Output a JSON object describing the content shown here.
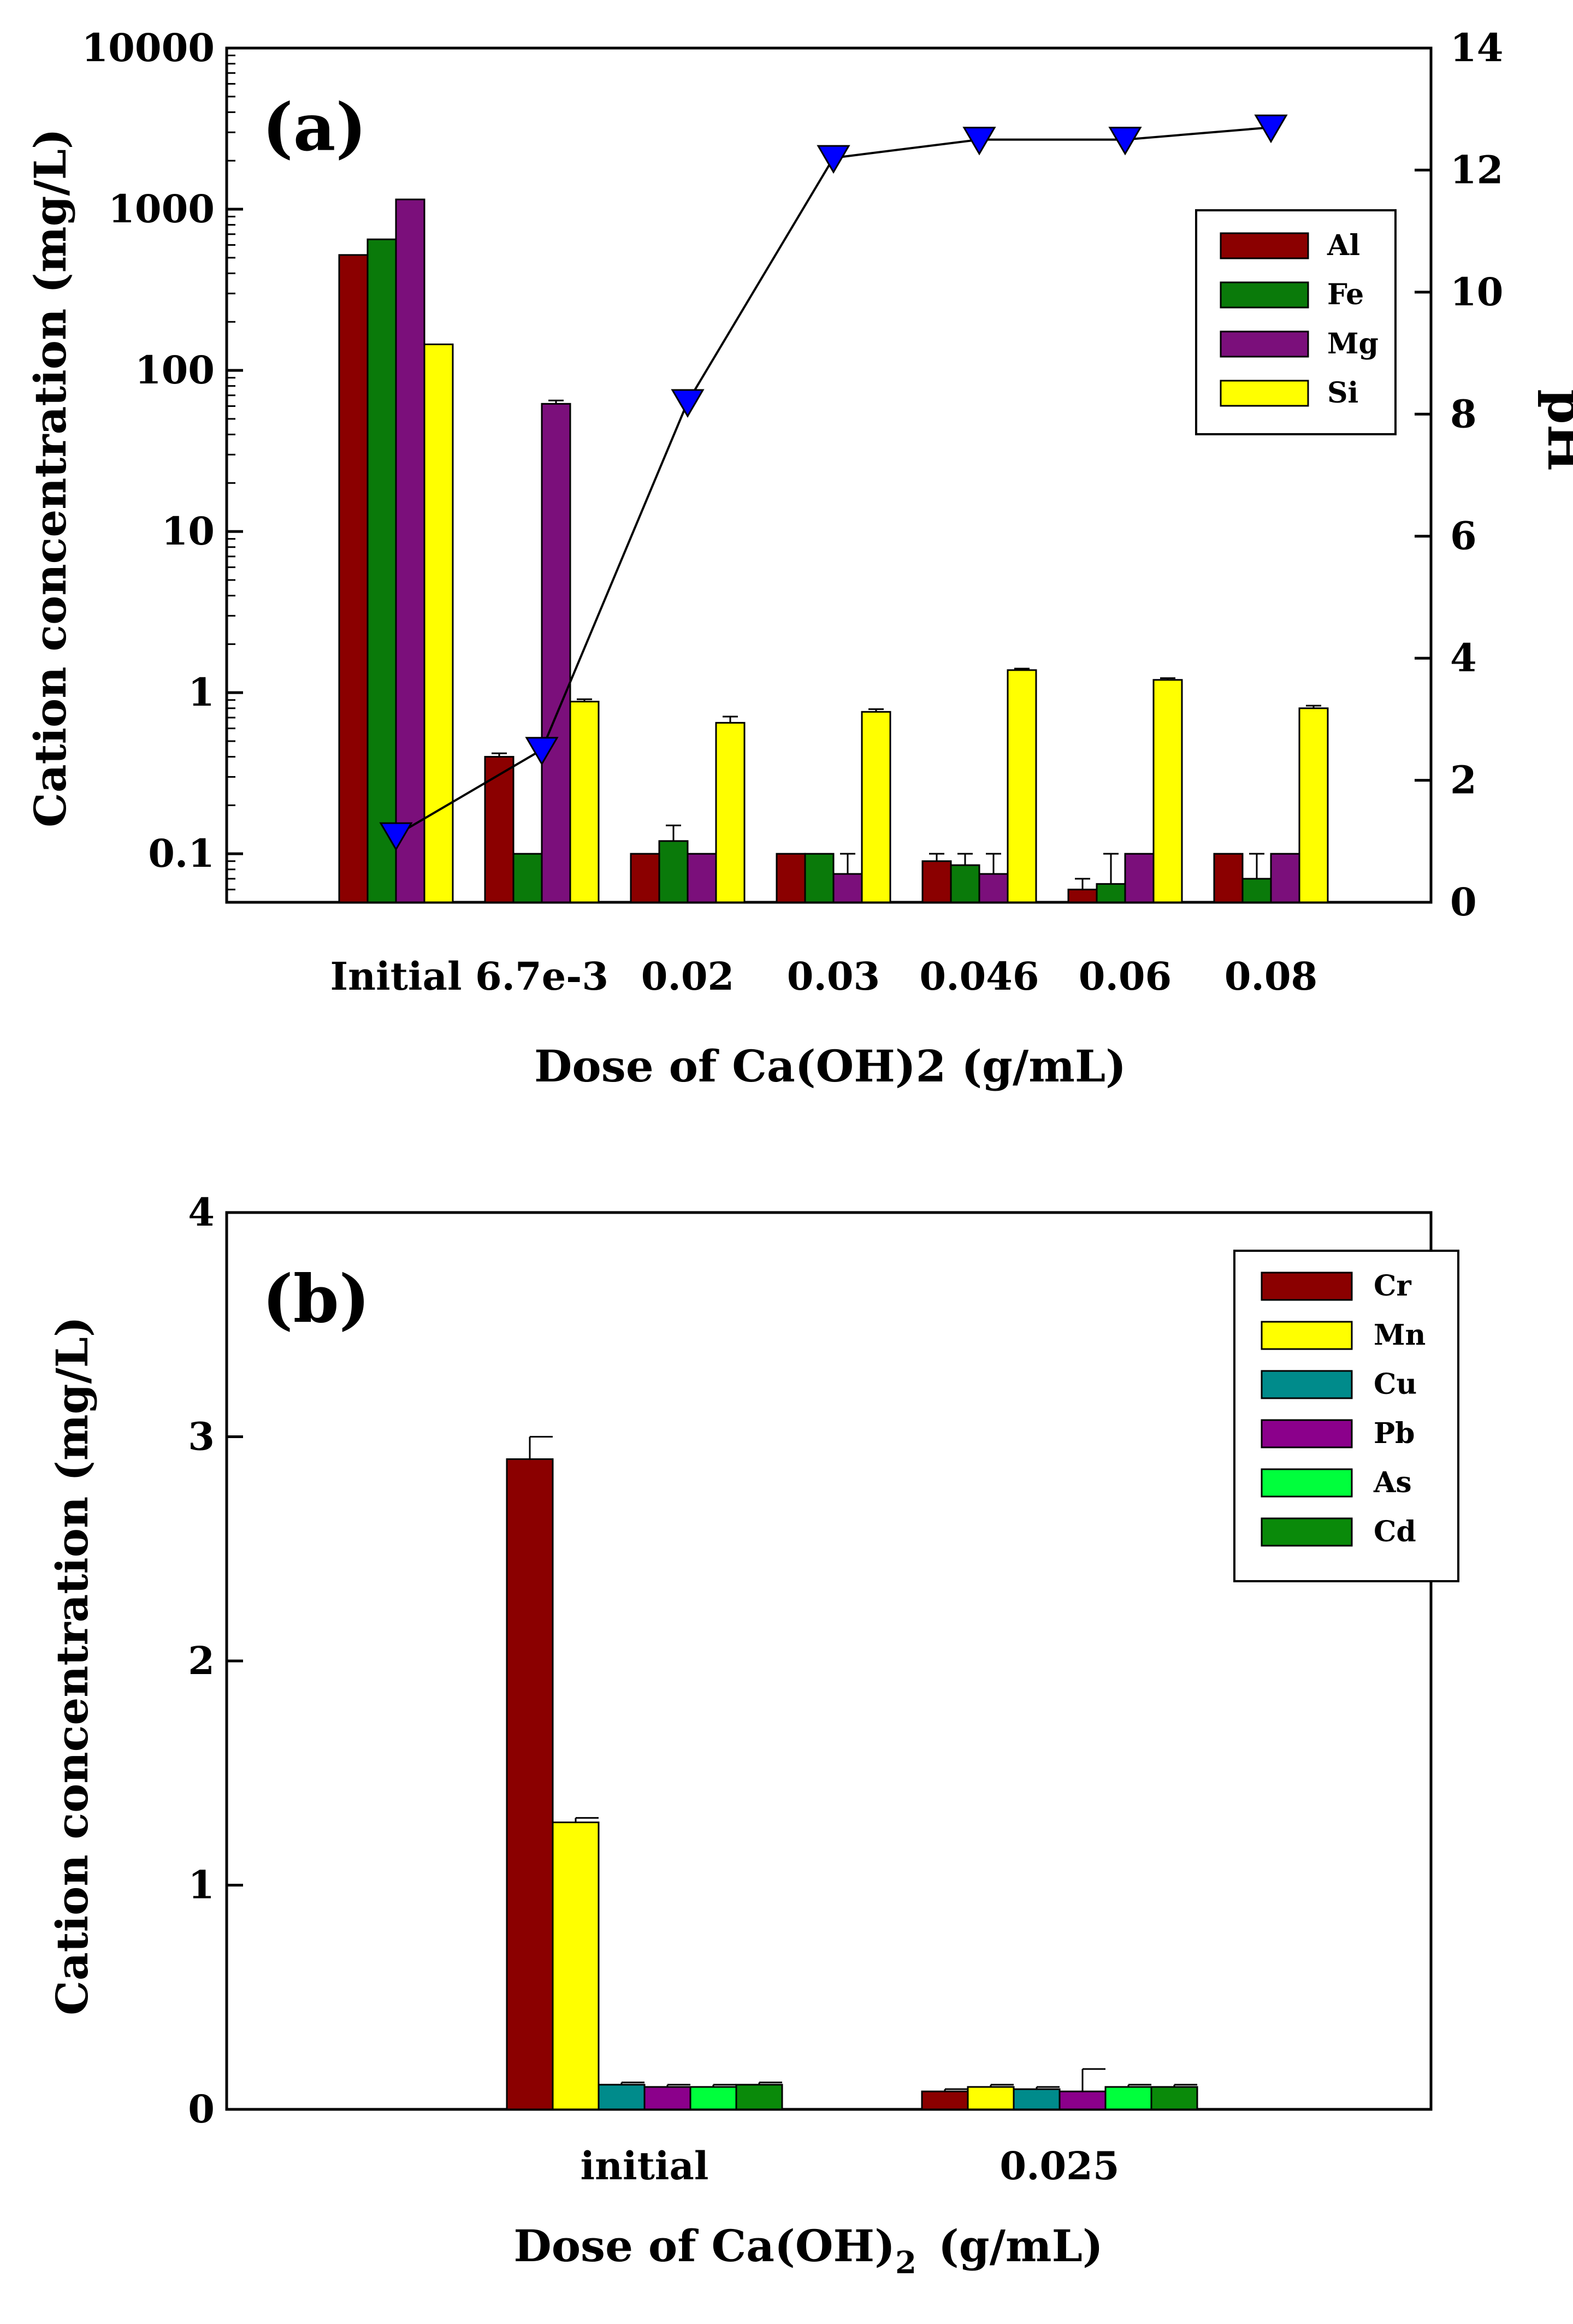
{
  "chart_data": [
    {
      "panel": "(a)",
      "type": "bar",
      "yscale": "log",
      "categories": [
        "Initial",
        "6.7e-3",
        "0.02",
        "0.03",
        "0.046",
        "0.06",
        "0.08"
      ],
      "series": [
        {
          "name": "Al",
          "color": "#8b0000",
          "values": [
            520,
            0.4,
            0.1,
            0.1,
            0.09,
            0.06,
            0.1
          ],
          "errors": [
            0,
            0.02,
            0,
            0,
            0.01,
            0.01,
            0
          ]
        },
        {
          "name": "Fe",
          "color": "#0a7a0a",
          "values": [
            650,
            0.1,
            0.12,
            0.1,
            0.085,
            0.065,
            0.07
          ],
          "errors": [
            0,
            0,
            0.03,
            0,
            0.015,
            0.035,
            0.03
          ]
        },
        {
          "name": "Mg",
          "color": "#7b0f7b",
          "values": [
            1150,
            62,
            0.1,
            0.075,
            0.075,
            0.1,
            0.1
          ],
          "errors": [
            0,
            3,
            0,
            0.025,
            0.025,
            0,
            0
          ]
        },
        {
          "name": "Si",
          "color": "#ffff00",
          "values": [
            145,
            0.88,
            0.65,
            0.76,
            1.38,
            1.2,
            0.8
          ],
          "errors": [
            0,
            0.03,
            0.06,
            0.03,
            0.03,
            0.03,
            0.03
          ]
        }
      ],
      "ph_series": {
        "name": "pH",
        "color": "#0000ff",
        "values": [
          1.1,
          2.5,
          8.2,
          12.2,
          12.5,
          12.5,
          12.7
        ]
      },
      "title": "(a)",
      "xlabel": "Dose of Ca(OH)2  (g/mL)",
      "ylabel": "Cation concentration  (mg/L)",
      "y2label": "pH",
      "ylim": [
        0.05,
        10000
      ],
      "y2lim": [
        0,
        14
      ],
      "y_ticks": [
        "0.1",
        "1",
        "10",
        "100",
        "1000",
        "10000"
      ],
      "y2_ticks": [
        "0",
        "2",
        "4",
        "6",
        "8",
        "10",
        "12",
        "14"
      ],
      "legend_position": "top-right"
    },
    {
      "panel": "(b)",
      "type": "bar",
      "categories": [
        "initial",
        "0.025"
      ],
      "series": [
        {
          "name": "Cr",
          "color": "#8b0000",
          "values": [
            2.9,
            0.08
          ],
          "errors": [
            0.1,
            0.01
          ]
        },
        {
          "name": "Mn",
          "color": "#ffff00",
          "values": [
            1.28,
            0.1
          ],
          "errors": [
            0.02,
            0.01
          ]
        },
        {
          "name": "Cu",
          "color": "#008b8b",
          "values": [
            0.11,
            0.09
          ],
          "errors": [
            0.01,
            0.01
          ]
        },
        {
          "name": "Pb",
          "color": "#8b008b",
          "values": [
            0.1,
            0.08
          ],
          "errors": [
            0.01,
            0.1
          ]
        },
        {
          "name": "As",
          "color": "#00ff3c",
          "values": [
            0.1,
            0.1
          ],
          "errors": [
            0.01,
            0.01
          ]
        },
        {
          "name": "Cd",
          "color": "#0a8a0a",
          "values": [
            0.11,
            0.1
          ],
          "errors": [
            0.01,
            0.01
          ]
        }
      ],
      "title": "(b)",
      "xlabel_main": "Dose of Ca(OH)",
      "xlabel_subscript": "2",
      "xlabel_units": "(g/mL)",
      "ylabel": "Cation concentration  (mg/L)",
      "ylim": [
        0,
        4
      ],
      "y_ticks": [
        "0",
        "1",
        "2",
        "3",
        "4"
      ],
      "legend_position": "top-right"
    }
  ]
}
